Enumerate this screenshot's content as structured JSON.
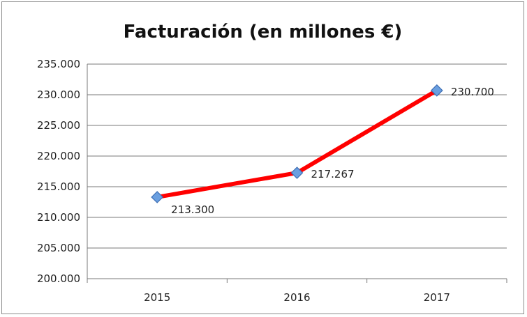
{
  "chart_data": {
    "type": "line",
    "title": "Facturación (en millones €)",
    "categories": [
      "2015",
      "2016",
      "2017"
    ],
    "series": [
      {
        "values": [
          213300,
          217267,
          230700
        ],
        "data_labels": [
          "213.300",
          "217.267",
          "230.700"
        ],
        "color": "#ff0000",
        "marker_color": "#6a9fe0"
      }
    ],
    "ylim": [
      200000,
      235000
    ],
    "y_ticks": [
      200000,
      205000,
      210000,
      215000,
      220000,
      225000,
      230000,
      235000
    ],
    "y_tick_labels": [
      "200.000",
      "205.000",
      "210.000",
      "215.000",
      "220.000",
      "225.000",
      "230.000",
      "235.000"
    ],
    "grid": true,
    "legend": "none"
  }
}
